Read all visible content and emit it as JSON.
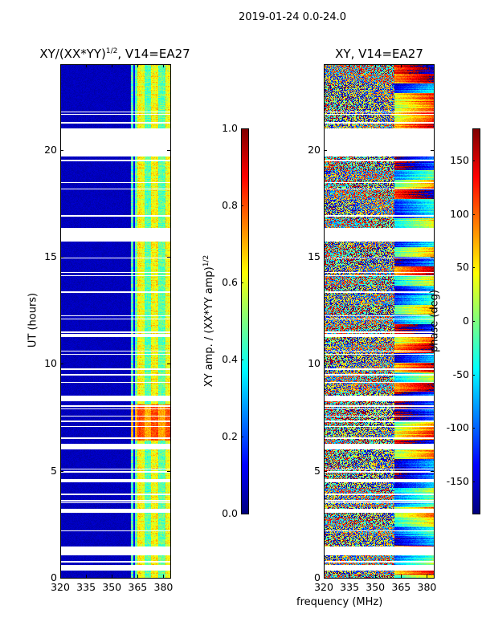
{
  "suptitle": "2019-01-24 0.0-24.0",
  "xlabel": "frequency (MHz)",
  "chart_data": [
    {
      "type": "heatmap",
      "title": "XY/(XX*YY)",
      "title_superscript": "1/2",
      "title_suffix": ", V14=EA27",
      "ylabel": "UT (hours)",
      "xlabel": "frequency (MHz)",
      "xlim": [
        320,
        384
      ],
      "ylim": [
        0,
        24
      ],
      "xticks": [
        320,
        335,
        350,
        365,
        380
      ],
      "yticks": [
        0,
        5,
        10,
        15,
        20
      ],
      "colormap": "jet",
      "colorbar": {
        "label": "XY amp. / (XX*YY amp)",
        "label_superscript": "1/2",
        "range": [
          0.0,
          1.0
        ],
        "ticks": [
          "0.0",
          "0.2",
          "0.4",
          "0.6",
          "0.8",
          "1.0"
        ]
      },
      "description_of_values": {
        "below_361MHz": 0.05,
        "361_384MHz": 0.45,
        "361_384MHz_6.4_to_8.1h": 0.72
      },
      "flagged_ut_ranges": [
        [
          19.7,
          21.0
        ],
        [
          15.7,
          16.35
        ],
        [
          1.05,
          1.45
        ],
        [
          0.35,
          0.6
        ],
        [
          6.0,
          6.25
        ],
        [
          8.25,
          8.5
        ],
        [
          4.45,
          4.6
        ],
        [
          11.25,
          11.4
        ]
      ]
    },
    {
      "type": "heatmap",
      "title": "XY, V14=EA27",
      "ylabel": "",
      "xlabel": "frequency (MHz)",
      "xlim": [
        320,
        384
      ],
      "ylim": [
        0,
        24
      ],
      "xticks": [
        320,
        335,
        350,
        365,
        380
      ],
      "yticks": [
        0,
        5,
        10,
        15,
        20
      ],
      "colormap": "jet",
      "colorbar": {
        "label": "phase (deg)",
        "range": [
          -180,
          180
        ],
        "ticks": [
          "-150",
          "-100",
          "-50",
          "0",
          "50",
          "100",
          "150"
        ]
      },
      "flagged_ut_ranges": [
        [
          19.7,
          21.0
        ],
        [
          15.7,
          16.35
        ],
        [
          1.05,
          1.45
        ],
        [
          0.35,
          0.6
        ],
        [
          6.0,
          6.25
        ],
        [
          8.25,
          8.5
        ],
        [
          4.45,
          4.6
        ],
        [
          11.25,
          11.4
        ]
      ]
    }
  ]
}
